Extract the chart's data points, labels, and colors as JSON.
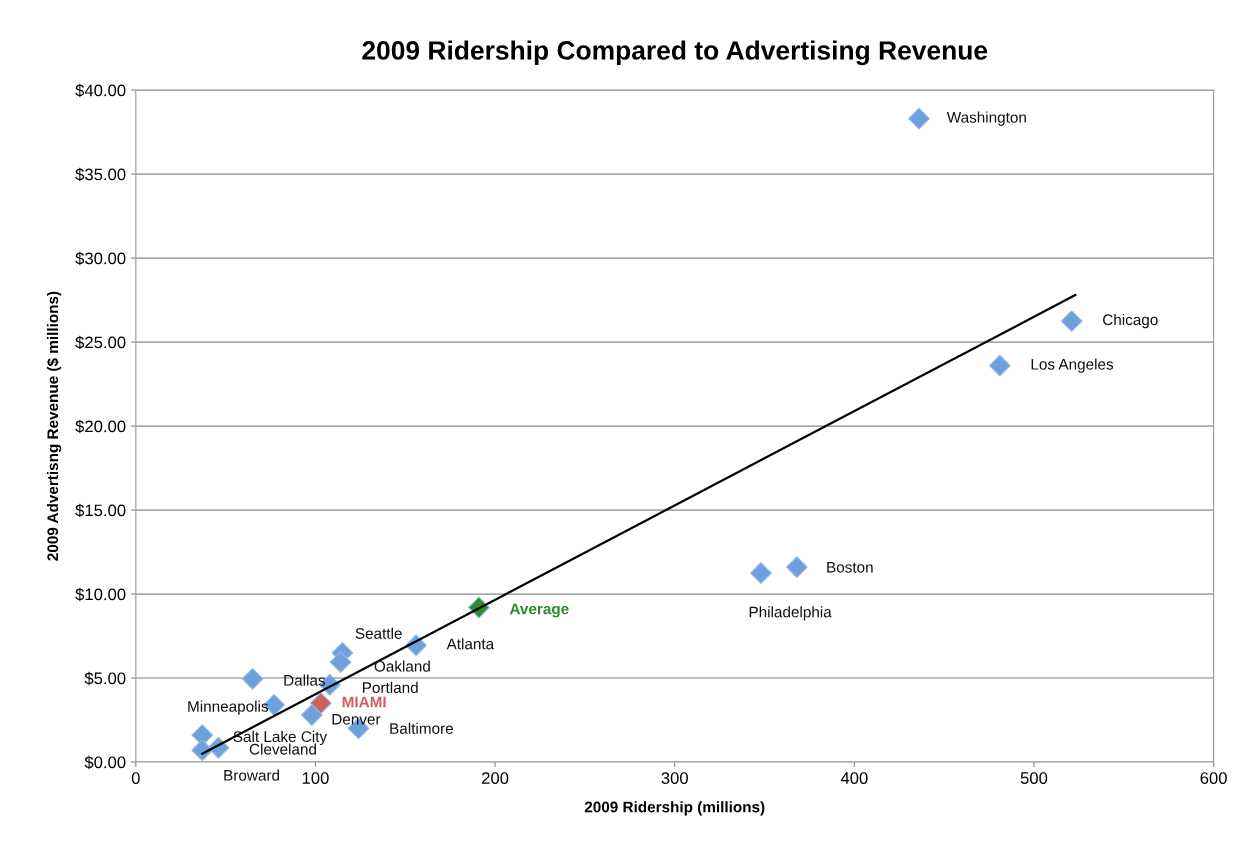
{
  "chart_data": {
    "type": "scatter",
    "title": "2009 Ridership Compared to Advertising Revenue",
    "xlabel": "2009 Ridership (millions)",
    "ylabel": "2009 Advertisng Revenue ($ millions)",
    "xlim": [
      0,
      600
    ],
    "xticks": [
      0,
      100,
      200,
      300,
      400,
      500,
      600
    ],
    "ylim": [
      0,
      40
    ],
    "yticks": [
      {
        "value": 0,
        "label": "$0.00"
      },
      {
        "value": 5,
        "label": "$5.00"
      },
      {
        "value": 10,
        "label": "$10.00"
      },
      {
        "value": 15,
        "label": "$15.00"
      },
      {
        "value": 20,
        "label": "$20.00"
      },
      {
        "value": 25,
        "label": "$25.00"
      },
      {
        "value": 30,
        "label": "$30.00"
      },
      {
        "value": 35,
        "label": "$35.00"
      },
      {
        "value": 40,
        "label": "$40.00"
      }
    ],
    "grid": "y",
    "legend": false,
    "marker": "diamond",
    "series": [
      {
        "x": [
          436,
          521,
          481,
          368,
          348,
          191,
          156,
          115,
          114,
          65,
          108,
          77,
          103,
          98,
          124,
          37,
          46,
          37
        ],
        "values": [
          38.3,
          26.25,
          23.6,
          11.6,
          11.25,
          9.2,
          6.95,
          6.5,
          5.95,
          4.95,
          4.6,
          3.4,
          3.5,
          2.8,
          2.0,
          1.6,
          0.85,
          0.7
        ],
        "colors": [
          "#6fa0dc",
          "#6fa0dc",
          "#6fa0dc",
          "#6fa0dc",
          "#6fa0dc",
          "#2a8c2a",
          "#6fa0dc",
          "#6fa0dc",
          "#6fa0dc",
          "#6fa0dc",
          "#6fa0dc",
          "#6fa0dc",
          "#d0605e",
          "#6fa0dc",
          "#6fa0dc",
          "#6fa0dc",
          "#6fa0dc",
          "#6fa0dc"
        ]
      },
      {
        "type": "line",
        "marker": "none",
        "color": "#000000",
        "x": [
          37,
          523
        ],
        "values": [
          0.5,
          27.8
        ]
      }
    ],
    "annotations": [
      {
        "text": "Washington",
        "x": 436,
        "y": 38.3
      },
      {
        "text": "Chicago",
        "x": 521,
        "y": 26.25
      },
      {
        "text": "Los Angeles",
        "x": 481,
        "y": 23.6
      },
      {
        "text": "Boston",
        "x": 368,
        "y": 11.6
      },
      {
        "text": "Philadelphia",
        "x": 348,
        "y": 11.25
      },
      {
        "text": "Average",
        "x": 191,
        "y": 9.2
      },
      {
        "text": "Atlanta",
        "x": 156,
        "y": 6.95
      },
      {
        "text": "Seattle",
        "x": 115,
        "y": 6.5
      },
      {
        "text": "Oakland",
        "x": 114,
        "y": 5.95
      },
      {
        "text": "Dallas",
        "x": 65,
        "y": 4.95
      },
      {
        "text": "Portland",
        "x": 108,
        "y": 4.6
      },
      {
        "text": "Minneapolis",
        "x": 77,
        "y": 3.4
      },
      {
        "text": "MIAMI",
        "x": 103,
        "y": 3.5
      },
      {
        "text": "Denver",
        "x": 98,
        "y": 2.8
      },
      {
        "text": "Baltimore",
        "x": 124,
        "y": 2.0
      },
      {
        "text": "Salt Lake City",
        "x": 37,
        "y": 1.6
      },
      {
        "text": "Cleveland",
        "x": 46,
        "y": 0.85
      },
      {
        "text": "Broward",
        "x": 37,
        "y": 0.7
      }
    ]
  }
}
